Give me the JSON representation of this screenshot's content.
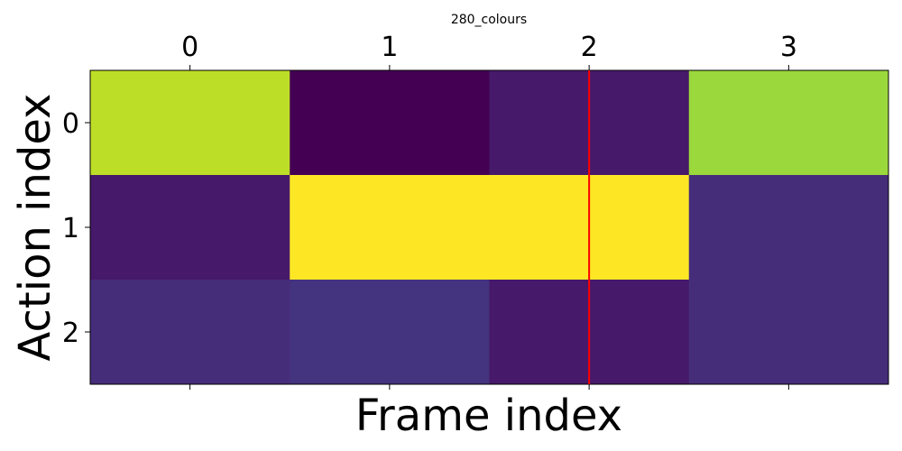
{
  "chart_data": {
    "type": "heatmap",
    "title": "280_colours",
    "xlabel": "Frame index",
    "ylabel": "Action index",
    "x_ticks": [
      "0",
      "1",
      "2",
      "3"
    ],
    "y_ticks": [
      "0",
      "1",
      "2"
    ],
    "x_tick_position": "top",
    "colormap": "viridis",
    "values": [
      [
        0.9,
        0.0,
        0.07,
        0.85
      ],
      [
        0.07,
        1.0,
        1.0,
        0.13
      ],
      [
        0.13,
        0.15,
        0.07,
        0.13
      ]
    ],
    "vline_at_x": 2,
    "vline_color": "#ff0000",
    "grid": false
  }
}
